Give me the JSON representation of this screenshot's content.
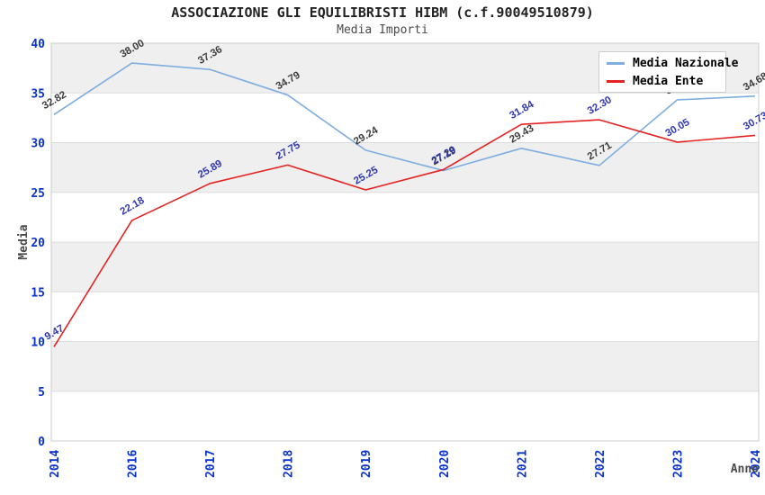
{
  "header": {
    "title": "ASSOCIAZIONE GLI EQUILIBRISTI HIBM (c.f.90049510879)",
    "subtitle": "Media Importi"
  },
  "legend": {
    "items": [
      {
        "label": "Media Nazionale",
        "color": "#7fade0"
      },
      {
        "label": "Media Ente",
        "color": "#e52222"
      }
    ]
  },
  "chart_data": {
    "type": "line",
    "title": "ASSOCIAZIONE GLI EQUILIBRISTI HIBM (c.f.90049510879)",
    "subtitle": "Media Importi",
    "xlabel": "Anno",
    "ylabel": "Media",
    "categories": [
      "2014",
      "2016",
      "2017",
      "2018",
      "2019",
      "2020",
      "2021",
      "2022",
      "2023",
      "2024"
    ],
    "series": [
      {
        "name": "Media Nazionale",
        "color": "#7fade0",
        "label_color": "#3d3d3d",
        "values": [
          32.82,
          38.0,
          37.36,
          34.79,
          29.24,
          27.19,
          29.43,
          27.71,
          34.3,
          34.68
        ],
        "point_labels": [
          "32.82",
          "38.00",
          "37.36",
          "34.79",
          "29.24",
          "27.19",
          "29.43",
          "27.71",
          "34.30",
          "34.68"
        ]
      },
      {
        "name": "Media Ente",
        "color": "#e52222",
        "label_color": "#3038b0",
        "values": [
          9.47,
          22.18,
          25.89,
          27.75,
          25.25,
          27.29,
          31.84,
          32.3,
          30.05,
          30.73
        ],
        "point_labels": [
          "9.47",
          "22.18",
          "25.89",
          "27.75",
          "25.25",
          "27.29",
          "31.84",
          "32.30",
          "30.05",
          "30.73"
        ]
      }
    ],
    "ylim": [
      0,
      40
    ],
    "yticks": [
      0,
      5,
      10,
      15,
      20,
      25,
      30,
      35,
      40
    ],
    "grid": true,
    "band_fill_ranges": [
      [
        35,
        40
      ],
      [
        25,
        30
      ],
      [
        15,
        20
      ],
      [
        5,
        10
      ]
    ],
    "legend_position": "top-right"
  },
  "colors": {
    "tick_label": "#0a33cc",
    "axis_title": "#4a4a4a",
    "band_fill": "#efefef",
    "gridline": "#dddddd",
    "plot_border": "#cccccc",
    "plot_background": "#ffffff"
  }
}
